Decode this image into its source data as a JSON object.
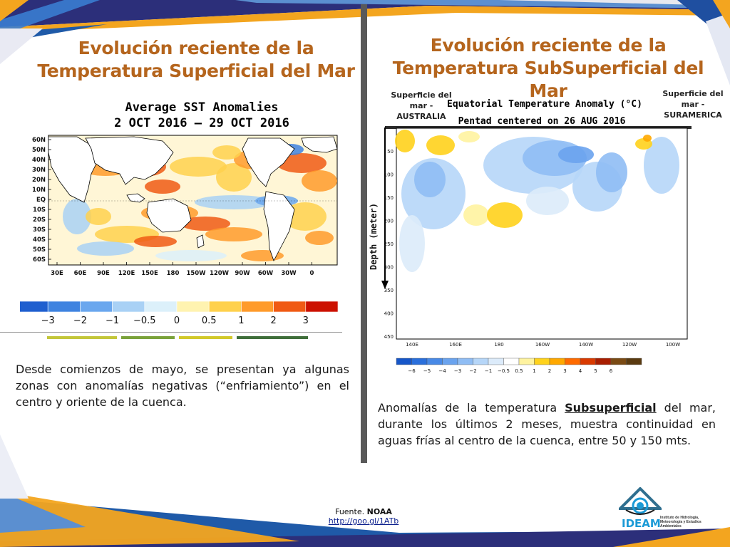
{
  "left": {
    "title_line1": "Evolución reciente de la",
    "title_line2": "Temperatura Superficial del Mar",
    "chart_title_line1": "Average SST Anomalies",
    "chart_title_line2": "2 OCT 2016 – 29 OCT 2016",
    "body": "Desde comienzos de mayo, se presentan ya algunas zonas con anomalías negativas (“enfriamiento”) en el centro y oriente de la cuenca."
  },
  "right": {
    "title_line1": "Evolución reciente de la",
    "title_line2": "Temperatura SubSuperficial del Mar",
    "label_australia": "Superficie del mar - AUSTRALIA",
    "label_suramerica": "Superficie del mar - SURAMERICA",
    "chart_title_line1": "Equatorial Temperature Anomaly (°C)",
    "chart_title_line2": "Pentad centered on 26 AUG 2016",
    "body_pre": "Anomalías de la temperatura ",
    "body_emph": "Subsuperficial",
    "body_post": " del mar, durante los últimos 2 meses, muestra continuidad en aguas frías al centro de la cuenca, entre 50 y 150 mts."
  },
  "footer": {
    "source_label": "Fuente.",
    "source_name": "NOAA",
    "link": "http://goo.gl/1ATb"
  },
  "logo": {
    "name": "IDEAM",
    "text": "Instituto de Hidrología, Meteorología y Estudios Ambientales"
  },
  "chart_data": [
    {
      "type": "heatmap",
      "title": "Average SST Anomalies",
      "subtitle": "2 OCT 2016 – 29 OCT 2016",
      "y_ticks": [
        "60N",
        "50N",
        "40N",
        "30N",
        "20N",
        "10N",
        "EQ",
        "10S",
        "20S",
        "30S",
        "40S",
        "50S",
        "60S"
      ],
      "x_ticks": [
        "30E",
        "60E",
        "90E",
        "120E",
        "150E",
        "180",
        "150W",
        "120W",
        "90W",
        "60W",
        "30W",
        "0"
      ],
      "colorbar_ticks": [
        "−3",
        "−2",
        "−1",
        "−0.5",
        "0",
        "0.5",
        "1",
        "2",
        "3"
      ],
      "colorbar_colors": [
        "#1f5fcf",
        "#3f83e0",
        "#6aa7ee",
        "#a9d1f5",
        "#dcf0fa",
        "#fff3b0",
        "#ffd14d",
        "#ff9b2b",
        "#f05a14",
        "#cc1100"
      ]
    },
    {
      "type": "heatmap",
      "title": "Equatorial Temperature Anomaly (°C)",
      "subtitle": "Pentad centered on 26 AUG 2016",
      "ylabel": "Depth (meter)",
      "y_ticks": [
        "50",
        "100",
        "150",
        "200",
        "250",
        "300",
        "350",
        "400",
        "450"
      ],
      "x_ticks": [
        "140E",
        "160E",
        "180",
        "160W",
        "140W",
        "120W",
        "100W"
      ],
      "colorbar_ticks": [
        "−6",
        "−5",
        "−4",
        "−3",
        "−2",
        "−1",
        "−0.5",
        "0.5",
        "1",
        "2",
        "3",
        "4",
        "5",
        "6"
      ],
      "colorbar_colors": [
        "#1656c8",
        "#2a6fdb",
        "#4889e6",
        "#6aa3ee",
        "#8fbdf4",
        "#b6d6f8",
        "#dcebfa",
        "#ffffff",
        "#fff3a0",
        "#ffd21c",
        "#ffa800",
        "#ff6a00",
        "#d93a00",
        "#a81e00",
        "#7a4a14",
        "#5a3a10"
      ]
    }
  ]
}
